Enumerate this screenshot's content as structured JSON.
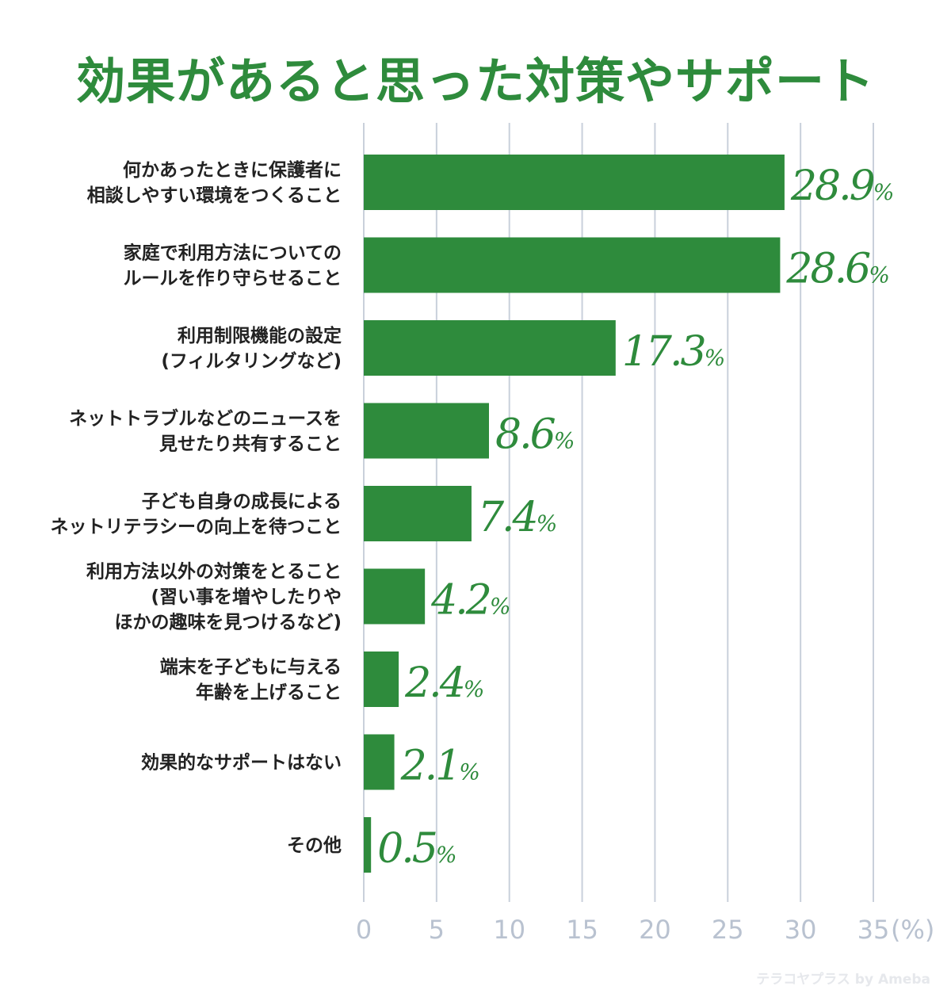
{
  "chart_data": {
    "type": "bar",
    "orientation": "horizontal",
    "title": "効果があると思った対策やサポート",
    "unit_label": "(%)",
    "xlim": [
      0,
      35
    ],
    "ticks": [
      0,
      5,
      10,
      15,
      20,
      25,
      30,
      35
    ],
    "grid": true,
    "bar_color": "#2e8b3c",
    "grid_color": "#c9d0db",
    "categories": [
      [
        "何かあったときに保護者に",
        "相談しやすい環境をつくること"
      ],
      [
        "家庭で利用方法についての",
        "ルールを作り守らせること"
      ],
      [
        "利用制限機能の設定",
        "(フィルタリングなど)"
      ],
      [
        "ネットトラブルなどのニュースを",
        "見せたり共有すること"
      ],
      [
        "子ども自身の成長による",
        "ネットリテラシーの向上を待つこと"
      ],
      [
        "利用方法以外の対策をとること",
        "(習い事を増やしたりや",
        "ほかの趣味を見つけるなど)"
      ],
      [
        "端末を子どもに与える",
        "年齢を上げること"
      ],
      [
        "効果的なサポートはない"
      ],
      [
        "その他"
      ]
    ],
    "values": [
      28.9,
      28.6,
      17.3,
      8.6,
      7.4,
      4.2,
      2.4,
      2.1,
      0.5
    ],
    "value_suffix": "%"
  },
  "watermark": "テラコヤプラス by Ameba"
}
